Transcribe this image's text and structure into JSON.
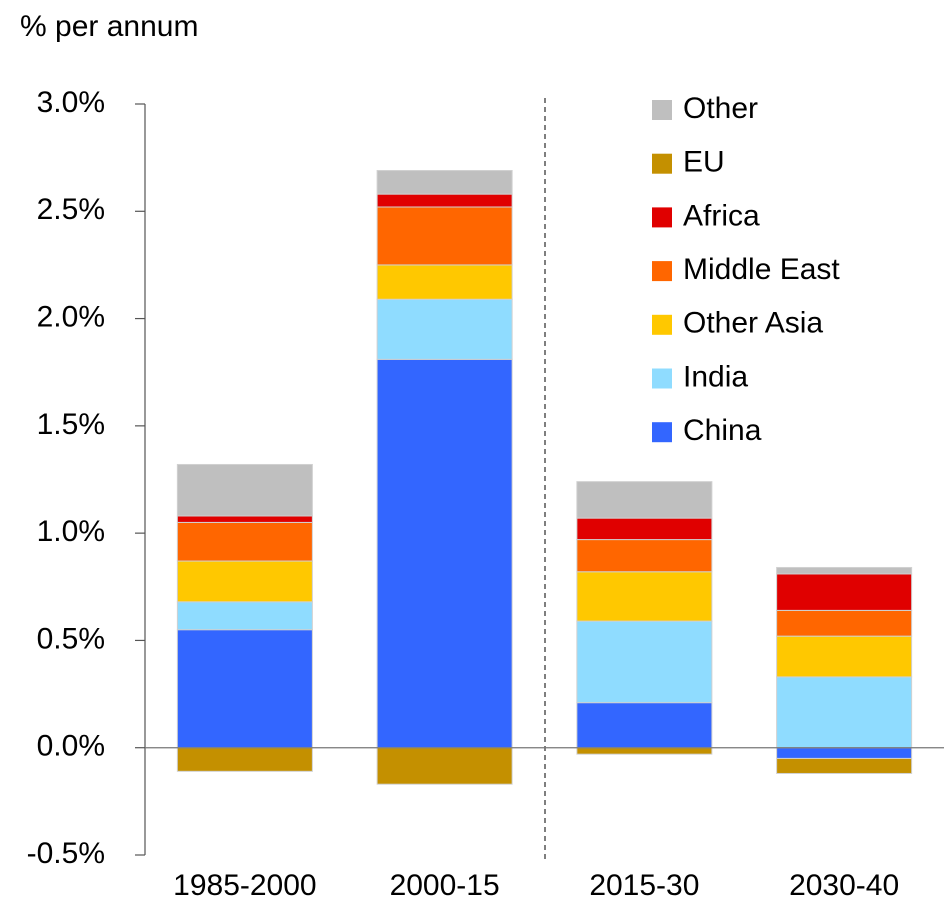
{
  "chart_data": {
    "type": "stacked_bar",
    "y_axis_label": "% per annum",
    "categories": [
      "1985-2000",
      "2000-15",
      "2015-30",
      "2030-40"
    ],
    "series": [
      {
        "name": "China",
        "color": "#3366ff",
        "values": [
          0.55,
          1.81,
          0.21,
          -0.05
        ]
      },
      {
        "name": "India",
        "color": "#8fdcff",
        "values": [
          0.13,
          0.28,
          0.38,
          0.33
        ]
      },
      {
        "name": "Other Asia",
        "color": "#ffc800",
        "values": [
          0.19,
          0.16,
          0.23,
          0.19
        ]
      },
      {
        "name": "Middle East",
        "color": "#ff6600",
        "values": [
          0.18,
          0.27,
          0.15,
          0.12
        ]
      },
      {
        "name": "Africa",
        "color": "#e00000",
        "values": [
          0.03,
          0.06,
          0.1,
          0.17
        ]
      },
      {
        "name": "EU",
        "color": "#c49000",
        "values": [
          -0.11,
          -0.17,
          -0.03,
          -0.07
        ]
      },
      {
        "name": "Other",
        "color": "#bfbfbf",
        "values": [
          0.24,
          0.11,
          0.17,
          0.03
        ]
      }
    ],
    "ylim": [
      -0.5,
      3.0
    ],
    "yticks": [
      {
        "value": -0.5,
        "label": "-0.5%"
      },
      {
        "value": 0,
        "label": "0.0%"
      },
      {
        "value": 0.5,
        "label": "0.5%"
      },
      {
        "value": 1,
        "label": "1.0%"
      },
      {
        "value": 1.5,
        "label": "1.5%"
      },
      {
        "value": 2,
        "label": "2.0%"
      },
      {
        "value": 2.5,
        "label": "2.5%"
      },
      {
        "value": 3,
        "label": "3.0%"
      }
    ],
    "legend": "top-right",
    "legend_reversed": true
  }
}
